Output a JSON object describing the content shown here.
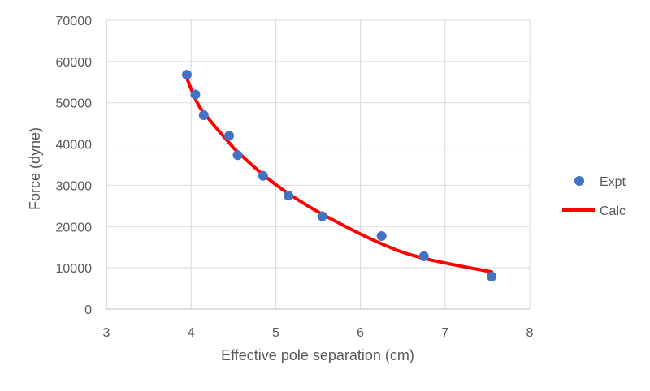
{
  "chart_data": {
    "type": "scatter",
    "title": "",
    "xlabel": "Effective pole separation (cm)",
    "ylabel": "Force  (dyne)",
    "xlim": [
      3,
      8
    ],
    "ylim": [
      0,
      70000
    ],
    "xticks": [
      3,
      4,
      5,
      6,
      7,
      8
    ],
    "yticks": [
      0,
      10000,
      20000,
      30000,
      40000,
      50000,
      60000,
      70000
    ],
    "x_tick_labels": [
      "3",
      "4",
      "5",
      "6",
      "7",
      "8"
    ],
    "y_tick_labels": [
      "0",
      "10000",
      "20000",
      "30000",
      "40000",
      "50000",
      "60000",
      "70000"
    ],
    "grid": true,
    "legend_position": "right",
    "series": [
      {
        "name": "Expt",
        "kind": "scatter",
        "color": "#4472C4",
        "x": [
          3.95,
          4.05,
          4.15,
          4.45,
          4.55,
          4.85,
          5.15,
          5.55,
          6.25,
          6.75,
          7.55
        ],
        "y": [
          56800,
          52000,
          47000,
          42000,
          37300,
          32300,
          27500,
          22500,
          17700,
          12800,
          7900
        ]
      },
      {
        "name": "Calc",
        "kind": "line",
        "color": "#FF0000",
        "x": [
          3.95,
          4.05,
          4.15,
          4.45,
          4.55,
          4.85,
          5.15,
          5.55,
          6.25,
          6.75,
          7.55
        ],
        "y": [
          56000,
          51000,
          47600,
          40300,
          38100,
          32600,
          28000,
          23000,
          15800,
          12300,
          9000
        ]
      }
    ]
  }
}
